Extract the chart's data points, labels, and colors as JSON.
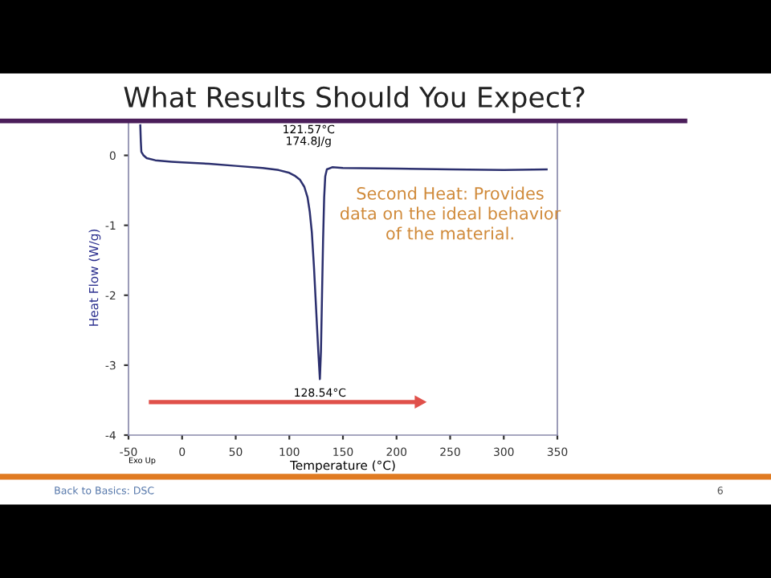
{
  "chart_data": {
    "type": "line",
    "title": "What Results Should You Expect?",
    "xlabel": "Temperature (°C)",
    "ylabel": "Heat Flow (W/g)",
    "x": [
      -39,
      -38.5,
      -38,
      -36,
      -33,
      -25,
      -10,
      0,
      25,
      50,
      75,
      90,
      100,
      105,
      110,
      114,
      117,
      119,
      121,
      123,
      125,
      127,
      128.5,
      129.5,
      130.5,
      131.5,
      132.5,
      133.5,
      135,
      140,
      150,
      200,
      250,
      300,
      340
    ],
    "series": [
      {
        "color": "#2b2f6e",
        "values": [
          0.43,
          0.2,
          0.05,
          0.0,
          -0.04,
          -0.07,
          -0.09,
          -0.1,
          -0.12,
          -0.15,
          -0.18,
          -0.21,
          -0.25,
          -0.29,
          -0.35,
          -0.45,
          -0.6,
          -0.8,
          -1.1,
          -1.6,
          -2.2,
          -2.8,
          -3.2,
          -2.8,
          -2.0,
          -1.2,
          -0.6,
          -0.3,
          -0.2,
          -0.17,
          -0.18,
          -0.19,
          -0.2,
          -0.21,
          -0.2
        ]
      }
    ],
    "xlim": [
      -50,
      350
    ],
    "xticks": [
      -50,
      0,
      50,
      100,
      150,
      200,
      250,
      300,
      350
    ],
    "ylim": [
      -4,
      0.5
    ],
    "yticks": [
      -4,
      -3,
      -2,
      -1,
      0
    ],
    "grid": false,
    "legend": false,
    "marker": "none",
    "line_style": "solid",
    "annotations": [
      "121.57°C\n174.8J/g",
      {
        "text": "128.54°C",
        "x": 128.54,
        "y": -3.2
      },
      "Second Heat: Provides\ndata on the ideal behavior\nof the material.",
      "Exo Up",
      "Back to Basics: DSC",
      "6"
    ]
  }
}
